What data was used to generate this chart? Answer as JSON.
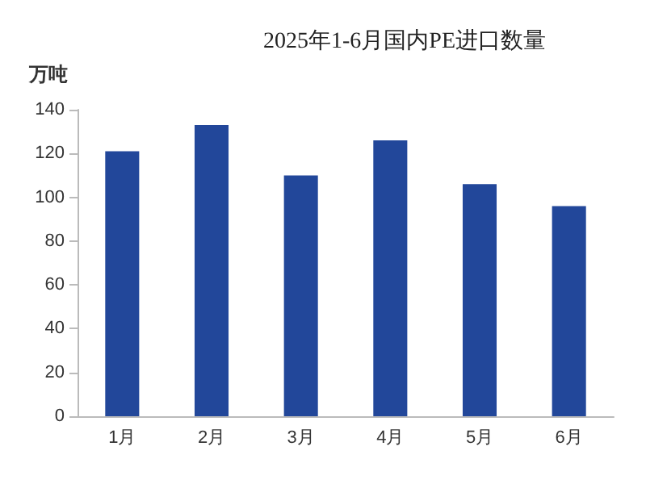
{
  "chart_data": {
    "type": "bar",
    "title": "2025年1-6月国内PE进口数量",
    "ylabel": "万吨",
    "categories": [
      "1月",
      "2月",
      "3月",
      "4月",
      "5月",
      "6月"
    ],
    "values": [
      121,
      133,
      110,
      126,
      106,
      96
    ],
    "color": "#22479a",
    "ylim": [
      0,
      140
    ],
    "yticks": [
      0,
      20,
      40,
      60,
      80,
      100,
      120,
      140
    ],
    "grid": false
  }
}
